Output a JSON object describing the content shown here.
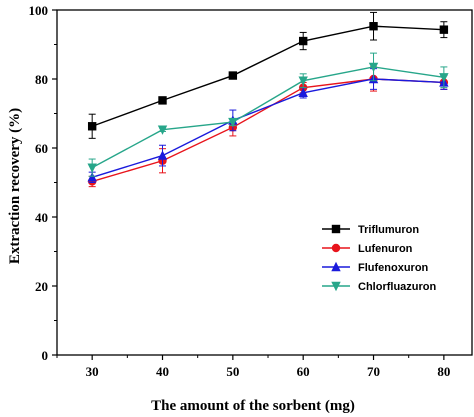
{
  "chart_data": {
    "type": "line",
    "xlabel": "The amount of the sorbent (mg)",
    "ylabel": "Extraction recovery (%)",
    "x": [
      30,
      40,
      50,
      60,
      70,
      80
    ],
    "xlim": [
      25,
      84
    ],
    "ylim": [
      0,
      100
    ],
    "xticks": [
      "30",
      "40",
      "50",
      "60",
      "70",
      "80"
    ],
    "yticks": [
      "0",
      "20",
      "40",
      "60",
      "80",
      "100"
    ],
    "grid": false,
    "legend_position": "right",
    "series": [
      {
        "name": "Triflumuron",
        "color": "#000000",
        "marker": "square",
        "values": [
          66.3,
          73.8,
          81.0,
          91.0,
          95.3,
          94.3
        ],
        "errors": [
          3.5,
          0.6,
          0.6,
          2.5,
          4.0,
          2.3
        ]
      },
      {
        "name": "Lufenuron",
        "color": "#e8141c",
        "marker": "circle",
        "values": [
          50.3,
          56.3,
          66.0,
          77.5,
          80.0,
          79.0
        ],
        "errors": [
          1.5,
          3.5,
          2.5,
          1.5,
          3.5,
          2.0
        ]
      },
      {
        "name": "Flufenoxuron",
        "color": "#1a1adc",
        "marker": "triangle-up",
        "values": [
          51.5,
          57.8,
          68.0,
          76.0,
          80.0,
          79.0
        ],
        "errors": [
          1.5,
          3.0,
          3.0,
          1.5,
          3.0,
          2.0
        ]
      },
      {
        "name": "Chlorfluazuron",
        "color": "#27a68a",
        "marker": "triangle-down",
        "values": [
          54.3,
          65.3,
          67.5,
          79.5,
          83.5,
          80.5
        ],
        "errors": [
          2.5,
          0.5,
          1.0,
          2.0,
          4.0,
          3.0
        ]
      }
    ]
  }
}
